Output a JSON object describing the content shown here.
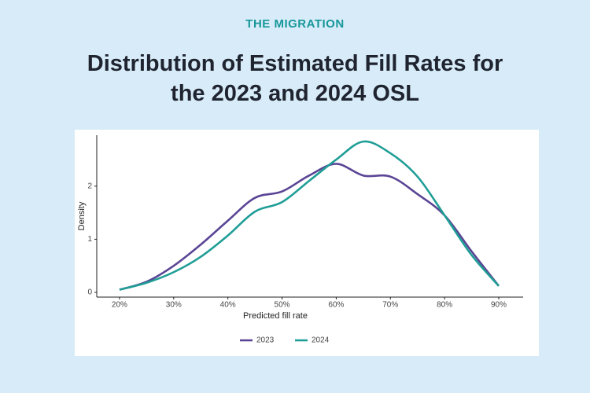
{
  "brand": "THE MIGRATION",
  "chart_data": {
    "type": "line",
    "title": "Distribution of Estimated Fill Rates for the 2023 and 2024 OSL",
    "x_label": "Predicted fill rate",
    "y_label": "Density",
    "x": [
      20,
      25,
      30,
      35,
      40,
      45,
      50,
      55,
      60,
      65,
      70,
      75,
      80,
      85,
      90
    ],
    "series": [
      {
        "name": "2023",
        "color": "#5a4595",
        "values": [
          0.05,
          0.2,
          0.5,
          0.9,
          1.35,
          1.78,
          1.9,
          2.2,
          2.42,
          2.2,
          2.18,
          1.85,
          1.45,
          0.77,
          0.12
        ]
      },
      {
        "name": "2024",
        "color": "#1f9e96",
        "values": [
          0.05,
          0.18,
          0.38,
          0.67,
          1.07,
          1.52,
          1.7,
          2.1,
          2.5,
          2.84,
          2.62,
          2.18,
          1.45,
          0.7,
          0.12
        ]
      }
    ],
    "xlim": [
      15.8,
      94.5
    ],
    "ylim": [
      -0.09,
      2.96
    ],
    "xticks": [
      {
        "value": 20,
        "label": "20%"
      },
      {
        "value": 30,
        "label": "30%"
      },
      {
        "value": 40,
        "label": "40%"
      },
      {
        "value": 50,
        "label": "50%"
      },
      {
        "value": 60,
        "label": "60%"
      },
      {
        "value": 70,
        "label": "70%"
      },
      {
        "value": 80,
        "label": "80%"
      },
      {
        "value": 90,
        "label": "90%"
      }
    ],
    "yticks": [
      0,
      1,
      2
    ],
    "grid": false,
    "legend": "bottom"
  }
}
